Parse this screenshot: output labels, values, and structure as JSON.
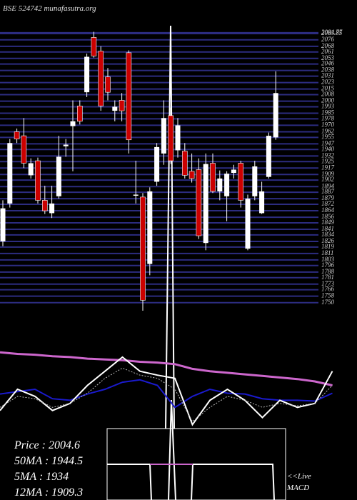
{
  "header": {
    "title": "BSE 524742 munafasutra.org"
  },
  "chart_data": [
    {
      "type": "candlestick",
      "values": [
        [
          1826,
          1877,
          1820,
          1867
        ],
        [
          1873,
          1953,
          1868,
          1948
        ],
        [
          1962,
          1966,
          1948,
          1953
        ],
        [
          1957,
          1979,
          1917,
          1923
        ],
        [
          1908,
          1929,
          1904,
          1923
        ],
        [
          1926,
          1930,
          1873,
          1877
        ],
        [
          1877,
          1895,
          1860,
          1864
        ],
        [
          1861,
          1895,
          1855,
          1873
        ],
        [
          1882,
          1957,
          1879,
          1931
        ],
        [
          1944,
          1953,
          1931,
          1946
        ],
        [
          1969,
          2001,
          1913,
          1975
        ],
        [
          1994,
          2001,
          1971,
          1975
        ],
        [
          2011,
          2059,
          2005,
          2055
        ],
        [
          2079,
          2086,
          2054,
          2056
        ],
        [
          2062,
          2068,
          1988,
          1994
        ],
        [
          2030,
          2041,
          2001,
          2011
        ],
        [
          1988,
          2001,
          1975,
          1993
        ],
        [
          2001,
          2010,
          1975,
          1988
        ],
        [
          2060,
          2063,
          1935,
          1952
        ],
        [
          1883,
          1926,
          1873,
          1884
        ],
        [
          1881,
          1886,
          1740,
          1753
        ],
        [
          1798,
          1893,
          1784,
          1888
        ],
        [
          1900,
          1948,
          1895,
          1943
        ],
        [
          1935,
          2001,
          1921,
          1979
        ],
        [
          1982,
          1992,
          1922,
          1926
        ],
        [
          1939,
          1979,
          1930,
          1970
        ],
        [
          1938,
          1948,
          1904,
          1908
        ],
        [
          1913,
          1935,
          1899,
          1904
        ],
        [
          1915,
          1929,
          1829,
          1833
        ],
        [
          1824,
          1935,
          1815,
          1922
        ],
        [
          1923,
          1935,
          1886,
          1888
        ],
        [
          1888,
          1914,
          1877,
          1904
        ],
        [
          1882,
          1913,
          1851,
          1910
        ],
        [
          1911,
          1921,
          1904,
          1915
        ],
        [
          1923,
          1926,
          1868,
          1877
        ],
        [
          1817,
          1884,
          1815,
          1879
        ],
        [
          1882,
          1926,
          1877,
          1919
        ],
        [
          1861,
          1900,
          1860,
          1888
        ],
        [
          1906,
          1961,
          1904,
          1957
        ],
        [
          1955,
          2037,
          1952,
          2010
        ]
      ],
      "ylim": [
        1740,
        2090
      ],
      "yticks": [
        2084.77,
        2083.85,
        2076,
        2068,
        2061,
        2053,
        2046,
        2038,
        2031,
        2023,
        2015,
        2008,
        2000,
        1993,
        1985,
        1978,
        1970,
        1962,
        1955,
        1947,
        1940,
        1932,
        1925,
        1917,
        1909,
        1902,
        1894,
        1887,
        1879,
        1872,
        1864,
        1856,
        1849,
        1841,
        1834,
        1826,
        1819,
        1811,
        1803,
        1796,
        1788,
        1781,
        1773,
        1766,
        1758,
        1750
      ],
      "grid": true,
      "grid_color": "#2c2c80",
      "up_color": "#ffffff",
      "down_color": "#cc0000"
    },
    {
      "type": "line",
      "ylim": [
        0,
        100
      ],
      "series": [
        {
          "color": "#cc66cc",
          "width": 3,
          "values": [
            97,
            95,
            94,
            92,
            91,
            89,
            88,
            87,
            85,
            84,
            82,
            76,
            73,
            71,
            69,
            67,
            65,
            63,
            60,
            55
          ]
        },
        {
          "color": "#1a1acc",
          "width": 2,
          "values": [
            44,
            47,
            50,
            38,
            36,
            44,
            50,
            59,
            62,
            55,
            27,
            41,
            50,
            45,
            44,
            38,
            36,
            36,
            35,
            45
          ]
        },
        {
          "color": "#ffffff",
          "width": 2,
          "values": [
            23,
            50,
            41,
            23,
            32,
            55,
            73,
            91,
            73,
            68,
            64,
            5,
            36,
            50,
            36,
            14,
            36,
            27,
            32,
            73
          ]
        },
        {
          "color": "#bbbbbb",
          "width": 1,
          "dash": true,
          "values": [
            27,
            41,
            38,
            27,
            32,
            45,
            64,
            77,
            68,
            64,
            50,
            9,
            27,
            41,
            36,
            27,
            32,
            29,
            32,
            55
          ]
        }
      ]
    }
  ],
  "stats": [
    "Price   : 2004.6",
    "50MA : 1944.5",
    "5MA : 1934",
    "12MA : 1909.3"
  ],
  "macd": {
    "live": "<<Live",
    "label": "MACD"
  }
}
